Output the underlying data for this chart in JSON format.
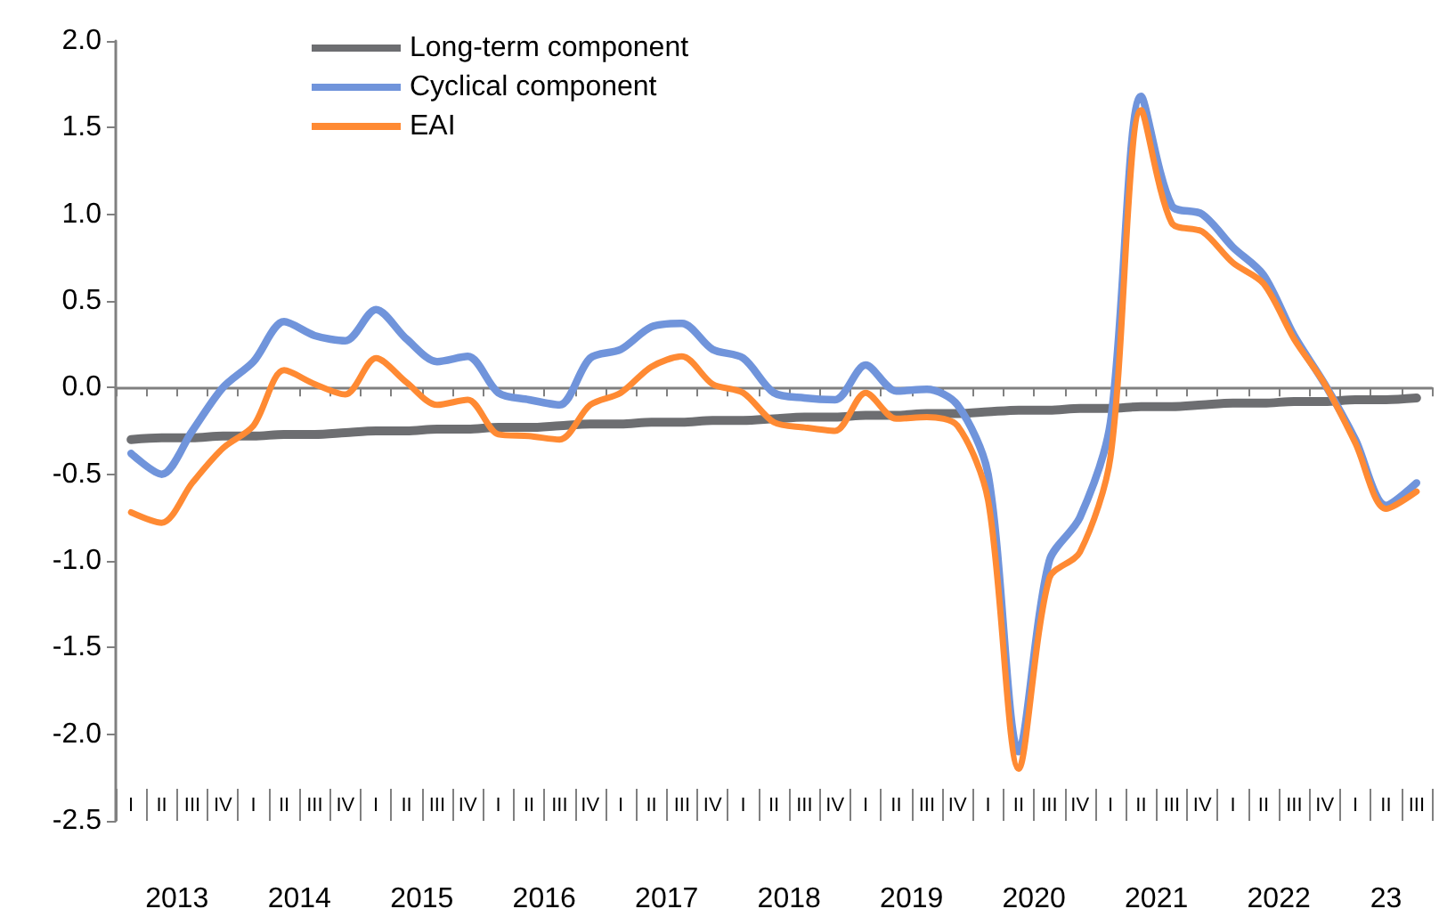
{
  "chart_data": {
    "type": "line",
    "categories": [
      "I",
      "II",
      "III",
      "IV",
      "I",
      "II",
      "III",
      "IV",
      "I",
      "II",
      "III",
      "IV",
      "I",
      "II",
      "III",
      "IV",
      "I",
      "II",
      "III",
      "IV",
      "I",
      "II",
      "III",
      "IV",
      "I",
      "II",
      "III",
      "IV",
      "I",
      "II",
      "III",
      "IV",
      "I",
      "II",
      "III",
      "IV",
      "I",
      "II",
      "III",
      "IV",
      "I",
      "II",
      "III"
    ],
    "series": [
      {
        "name": "Long-term component",
        "color": "#6d6e71",
        "values": [
          -0.3,
          -0.29,
          -0.29,
          -0.28,
          -0.28,
          -0.27,
          -0.27,
          -0.26,
          -0.25,
          -0.25,
          -0.24,
          -0.24,
          -0.23,
          -0.23,
          -0.22,
          -0.21,
          -0.21,
          -0.2,
          -0.2,
          -0.19,
          -0.19,
          -0.18,
          -0.17,
          -0.17,
          -0.16,
          -0.16,
          -0.15,
          -0.15,
          -0.14,
          -0.13,
          -0.13,
          -0.12,
          -0.12,
          -0.11,
          -0.11,
          -0.1,
          -0.09,
          -0.09,
          -0.08,
          -0.08,
          -0.07,
          -0.07,
          -0.06
        ]
      },
      {
        "name": "Cyclical component",
        "color": "#7094db",
        "values": [
          -0.38,
          -0.5,
          -0.25,
          0.0,
          0.15,
          0.38,
          0.3,
          0.27,
          0.45,
          0.28,
          0.15,
          0.18,
          -0.03,
          -0.07,
          -0.1,
          0.17,
          0.22,
          0.35,
          0.37,
          0.22,
          0.17,
          -0.03,
          -0.06,
          -0.07,
          0.13,
          -0.02,
          -0.01,
          -0.1,
          -0.5,
          -2.1,
          -1.0,
          -0.75,
          -0.2,
          1.68,
          1.05,
          1.0,
          0.81,
          0.65,
          0.3,
          0.02,
          -0.3,
          -0.68,
          -0.55
        ]
      },
      {
        "name": "EAI",
        "color": "#ff8a33",
        "values": [
          -0.72,
          -0.78,
          -0.55,
          -0.35,
          -0.22,
          0.1,
          0.02,
          -0.04,
          0.17,
          0.03,
          -0.1,
          -0.07,
          -0.27,
          -0.28,
          -0.3,
          -0.1,
          -0.03,
          0.12,
          0.18,
          0.02,
          -0.03,
          -0.2,
          -0.23,
          -0.25,
          -0.03,
          -0.18,
          -0.17,
          -0.22,
          -0.65,
          -2.2,
          -1.1,
          -0.95,
          -0.4,
          1.6,
          0.95,
          0.9,
          0.72,
          0.6,
          0.28,
          0.02,
          -0.32,
          -0.7,
          -0.6
        ]
      }
    ],
    "ylim": [
      -2.5,
      2.0
    ],
    "yticks": [
      {
        "value": -2.5,
        "label": "-2.5"
      },
      {
        "value": -2,
        "label": "-2.0"
      },
      {
        "value": -1.5,
        "label": "-1.5"
      },
      {
        "value": -1,
        "label": "-1.0"
      },
      {
        "value": -0.5,
        "label": "-0.5"
      },
      {
        "value": 0,
        "label": "0.0"
      },
      {
        "value": 0.5,
        "label": "0.5"
      },
      {
        "value": 1,
        "label": "1.0"
      },
      {
        "value": 1.5,
        "label": "1.5"
      },
      {
        "value": 2,
        "label": "2.0"
      }
    ],
    "annotations": [
      "2013",
      "2014",
      "2015",
      "2016",
      "2017",
      "2018",
      "2019",
      "2020",
      "2021",
      "2022",
      "23"
    ],
    "legend": "top left",
    "marker": "none",
    "line_style": "solid"
  }
}
